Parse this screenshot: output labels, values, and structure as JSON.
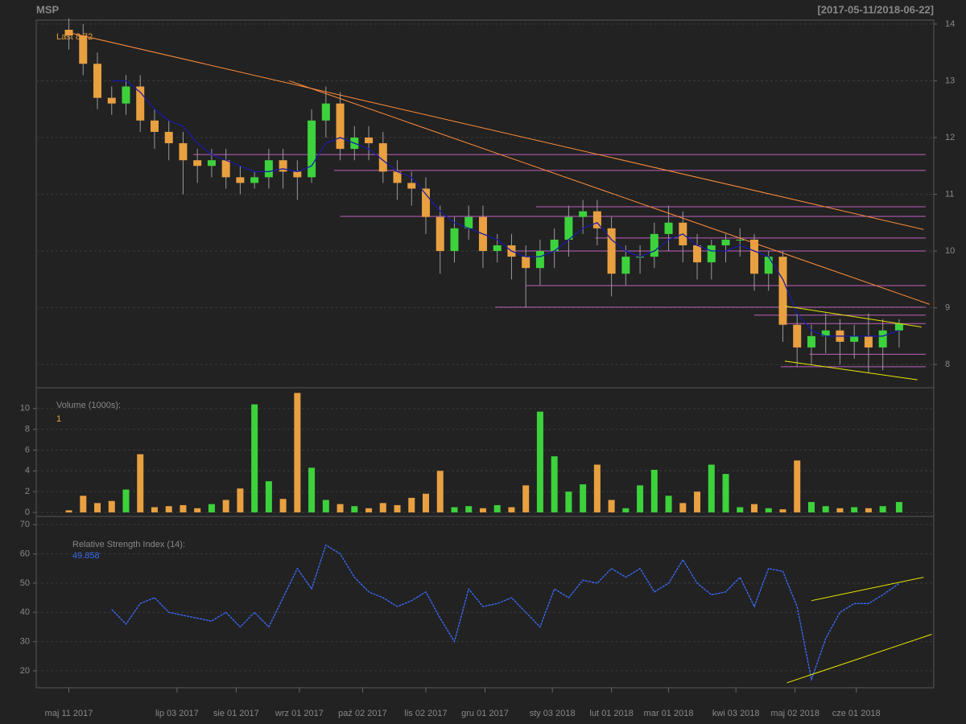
{
  "chart_data": [
    {
      "type": "candlestick",
      "title": "MSP",
      "subtitle": "[2017-05-11/2018-06-22]",
      "last_label": "Last",
      "x": [
        "2017-05-11",
        "2017-05-18",
        "2017-05-25",
        "2017-06-01",
        "2017-06-08",
        "2017-06-15",
        "2017-06-22",
        "2017-06-29",
        "2017-07-06",
        "2017-07-13",
        "2017-07-20",
        "2017-07-27",
        "2017-08-03",
        "2017-08-10",
        "2017-08-17",
        "2017-08-24",
        "2017-08-31",
        "2017-09-07",
        "2017-09-14",
        "2017-09-21",
        "2017-09-28",
        "2017-10-05",
        "2017-10-12",
        "2017-10-19",
        "2017-10-26",
        "2017-11-02",
        "2017-11-09",
        "2017-11-16",
        "2017-11-23",
        "2017-11-30",
        "2017-12-07",
        "2017-12-14",
        "2017-12-21",
        "2017-12-28",
        "2018-01-04",
        "2018-01-11",
        "2018-01-18",
        "2018-01-25",
        "2018-02-01",
        "2018-02-08",
        "2018-02-15",
        "2018-02-22",
        "2018-03-01",
        "2018-03-08",
        "2018-03-15",
        "2018-03-22",
        "2018-03-29",
        "2018-04-05",
        "2018-04-12",
        "2018-04-19",
        "2018-04-26",
        "2018-05-03",
        "2018-05-10",
        "2018-05-17",
        "2018-05-24",
        "2018-05-31",
        "2018-06-07",
        "2018-06-14",
        "2018-06-22"
      ],
      "open": [
        13.9,
        13.8,
        13.3,
        12.7,
        12.6,
        12.9,
        12.3,
        12.1,
        11.9,
        11.6,
        11.5,
        11.6,
        11.3,
        11.2,
        11.3,
        11.6,
        11.4,
        11.3,
        12.3,
        12.6,
        11.8,
        12.0,
        11.9,
        11.4,
        11.2,
        11.1,
        10.6,
        10.0,
        10.4,
        10.6,
        10.0,
        10.1,
        9.9,
        9.7,
        10.0,
        10.2,
        10.6,
        10.7,
        10.4,
        9.6,
        9.9,
        9.9,
        10.3,
        10.5,
        10.1,
        9.8,
        10.1,
        10.2,
        10.2,
        9.6,
        9.9,
        8.7,
        8.3,
        8.5,
        8.6,
        8.4,
        8.5,
        8.3,
        8.6
      ],
      "high": [
        14.1,
        14.0,
        13.5,
        12.9,
        13.1,
        13.1,
        12.5,
        12.3,
        12.1,
        11.8,
        11.8,
        11.8,
        11.5,
        11.4,
        11.8,
        11.8,
        11.6,
        12.5,
        12.9,
        12.8,
        12.2,
        12.2,
        12.1,
        11.6,
        11.4,
        11.3,
        10.8,
        10.6,
        10.8,
        10.8,
        10.3,
        10.3,
        10.1,
        10.2,
        10.4,
        10.8,
        10.9,
        10.9,
        10.6,
        10.1,
        10.1,
        10.5,
        10.8,
        10.7,
        10.3,
        10.2,
        10.3,
        10.4,
        10.3,
        10.0,
        10.0,
        8.9,
        8.7,
        8.9,
        8.8,
        8.7,
        8.9,
        8.8,
        8.8
      ],
      "low": [
        13.55,
        13.1,
        12.5,
        12.4,
        12.4,
        12.1,
        11.8,
        11.6,
        11.0,
        11.2,
        11.3,
        11.1,
        11.0,
        11.1,
        11.1,
        11.1,
        10.9,
        11.2,
        12.0,
        11.6,
        11.6,
        11.6,
        11.2,
        10.9,
        10.8,
        10.3,
        9.6,
        9.8,
        10.2,
        9.7,
        9.8,
        9.5,
        9.0,
        9.4,
        9.7,
        9.9,
        10.3,
        10.1,
        9.2,
        9.4,
        9.6,
        9.7,
        10.0,
        9.8,
        9.5,
        9.5,
        9.8,
        9.9,
        9.3,
        9.3,
        8.4,
        7.95,
        8.0,
        8.2,
        8.0,
        8.1,
        7.85,
        7.9,
        8.3
      ],
      "close": [
        13.8,
        13.3,
        12.7,
        12.6,
        12.9,
        12.3,
        12.1,
        11.9,
        11.6,
        11.5,
        11.6,
        11.3,
        11.2,
        11.3,
        11.6,
        11.4,
        11.3,
        12.3,
        12.6,
        11.8,
        12.0,
        11.9,
        11.4,
        11.2,
        11.1,
        10.6,
        10.0,
        10.4,
        10.6,
        10.0,
        10.1,
        9.9,
        9.7,
        10.0,
        10.2,
        10.6,
        10.7,
        10.4,
        9.6,
        9.9,
        9.9,
        10.3,
        10.5,
        10.1,
        9.8,
        10.1,
        10.2,
        10.2,
        9.6,
        9.9,
        8.7,
        8.3,
        8.5,
        8.6,
        8.4,
        8.5,
        8.3,
        8.6,
        8.72
      ],
      "up_color": "#3cd23c",
      "down_color": "#e8a040",
      "wick_color": "#999999",
      "sma": {
        "color": "#1a1aa8",
        "values": [
          null,
          null,
          null,
          13.0,
          13.0,
          12.8,
          12.5,
          12.3,
          12.2,
          11.9,
          11.7,
          11.6,
          11.5,
          11.4,
          11.4,
          11.45,
          11.4,
          11.5,
          11.9,
          12.0,
          11.9,
          11.8,
          11.6,
          11.4,
          11.3,
          11.0,
          10.7,
          10.5,
          10.4,
          10.3,
          10.2,
          10.0,
          9.9,
          9.9,
          10.0,
          10.2,
          10.4,
          10.5,
          10.2,
          10.0,
          9.9,
          10.0,
          10.2,
          10.3,
          10.1,
          10.0,
          10.0,
          10.1,
          10.0,
          9.9,
          9.5,
          8.9,
          8.6,
          8.5,
          8.5,
          8.5,
          8.5,
          8.5,
          8.6
        ]
      },
      "trend_lines": [
        {
          "color": "#ff8c3a",
          "x": [
            "2017-05-11",
            "2018-07-04"
          ],
          "y": [
            13.85,
            10.38
          ]
        },
        {
          "color": "#ff8c3a",
          "x": [
            "2017-08-27",
            "2018-07-07"
          ],
          "y": [
            13.0,
            9.06
          ]
        },
        {
          "color": "#e8e800",
          "x": [
            "2018-04-27",
            "2018-07-03"
          ],
          "y": [
            9.03,
            8.66
          ]
        },
        {
          "color": "#e8e800",
          "x": [
            "2018-04-27",
            "2018-07-01"
          ],
          "y": [
            8.06,
            7.73
          ]
        }
      ],
      "level_color": "#c060c0",
      "levels": [
        {
          "y": 11.7,
          "x": [
            "2017-07-11",
            "2018-07-05"
          ]
        },
        {
          "y": 11.42,
          "x": [
            "2017-09-18",
            "2018-07-05"
          ]
        },
        {
          "y": 10.78,
          "x": [
            "2017-12-26",
            "2018-07-05"
          ]
        },
        {
          "y": 10.61,
          "x": [
            "2017-09-21",
            "2018-07-05"
          ]
        },
        {
          "y": 10.23,
          "x": [
            "2018-01-24",
            "2018-07-05"
          ]
        },
        {
          "y": 10.0,
          "x": [
            "2017-12-16",
            "2018-07-05"
          ]
        },
        {
          "y": 9.39,
          "x": [
            "2017-12-21",
            "2018-07-05"
          ]
        },
        {
          "y": 9.01,
          "x": [
            "2017-12-06",
            "2018-07-05"
          ]
        },
        {
          "y": 8.87,
          "x": [
            "2018-04-12",
            "2018-07-05"
          ]
        },
        {
          "y": 8.72,
          "x": [
            "2018-04-27",
            "2018-07-05"
          ]
        },
        {
          "y": 8.18,
          "x": [
            "2018-05-09",
            "2018-07-05"
          ]
        },
        {
          "y": 7.96,
          "x": [
            "2018-04-25",
            "2018-07-05"
          ]
        }
      ],
      "xlim": [
        "2017-04-25",
        "2018-07-09"
      ],
      "xticks": [
        {
          "value": "2017-05-11",
          "label": "maj 11 2017"
        },
        {
          "value": "2017-07-03",
          "label": "lip 03 2017"
        },
        {
          "value": "2017-08-01",
          "label": "sie 01 2017"
        },
        {
          "value": "2017-09-01",
          "label": "wrz 01 2017"
        },
        {
          "value": "2017-10-02",
          "label": "paź 02 2017"
        },
        {
          "value": "2017-11-02",
          "label": "lis 02 2017"
        },
        {
          "value": "2017-12-01",
          "label": "gru 01 2017"
        },
        {
          "value": "2018-01-03",
          "label": "sty 03 2018"
        },
        {
          "value": "2018-02-01",
          "label": "lut 01 2018"
        },
        {
          "value": "2018-03-01",
          "label": "mar 01 2018"
        },
        {
          "value": "2018-04-03",
          "label": "kwi 03 2018"
        },
        {
          "value": "2018-05-02",
          "label": "maj 02 2018"
        },
        {
          "value": "2018-06-01",
          "label": "cze 01 2018"
        }
      ],
      "ylim": [
        7.59,
        14.07
      ],
      "yticks": [
        8,
        9,
        10,
        11,
        12,
        13,
        14
      ],
      "grid": true
    },
    {
      "type": "bar",
      "label": "Volume (1000s):",
      "values": [
        0.2,
        1.6,
        0.9,
        1.1,
        2.2,
        5.6,
        0.5,
        0.6,
        0.7,
        0.4,
        0.8,
        1.2,
        2.3,
        10.4,
        3.0,
        1.3,
        11.5,
        4.3,
        1.2,
        0.8,
        0.6,
        0.4,
        0.9,
        0.7,
        1.4,
        1.8,
        4.0,
        0.5,
        0.6,
        0.4,
        0.7,
        0.5,
        2.6,
        9.7,
        5.4,
        2.0,
        2.7,
        4.6,
        1.2,
        0.4,
        2.6,
        4.1,
        1.6,
        0.9,
        2.0,
        4.6,
        3.7,
        0.5,
        0.8,
        0.4,
        0.3,
        5.0,
        1.0,
        0.6,
        0.4,
        0.5,
        0.4,
        0.6,
        1
      ],
      "label_color": "#e8a040",
      "ylim": [
        -0.39,
        12.0
      ],
      "yticks": [
        0,
        2,
        4,
        6,
        8,
        10
      ],
      "grid": true
    },
    {
      "type": "line",
      "label": "Relative Strength Index (14):",
      "color": "#3a6cff",
      "values": [
        null,
        null,
        null,
        41,
        36,
        43,
        45,
        40,
        39,
        38,
        37,
        40,
        35,
        40,
        35,
        45,
        55,
        48,
        63,
        60,
        52,
        47,
        45,
        42,
        44,
        47,
        38,
        30,
        48,
        42,
        43,
        45,
        40,
        35,
        48,
        45,
        51,
        50,
        55,
        52,
        55,
        47,
        50,
        58,
        50,
        46,
        47,
        52,
        42,
        55,
        54,
        42,
        17,
        31,
        40,
        43,
        43,
        46,
        49.858
      ],
      "trend_lines": [
        {
          "color": "#e8e800",
          "x": [
            "2018-05-10",
            "2018-07-04"
          ],
          "y": [
            44.0,
            52.0
          ]
        },
        {
          "color": "#e8e800",
          "x": [
            "2018-04-28",
            "2018-07-08"
          ],
          "y": [
            15.9,
            32.5
          ]
        }
      ],
      "ylim": [
        14.2,
        72.8
      ],
      "yticks": [
        20,
        30,
        40,
        50,
        60,
        70
      ],
      "grid": true
    }
  ]
}
